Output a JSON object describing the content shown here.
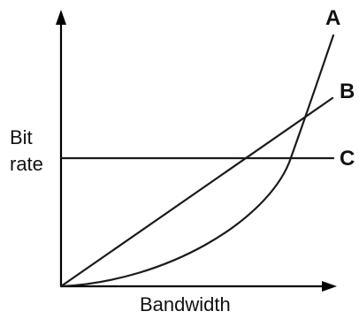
{
  "chart_data": {
    "type": "line",
    "xlabel": "Bandwidth",
    "ylabel_lines": [
      "Bit",
      "rate"
    ],
    "series": [
      {
        "name": "A",
        "shape": "exponential"
      },
      {
        "name": "B",
        "shape": "linear"
      },
      {
        "name": "C",
        "shape": "constant"
      }
    ],
    "grid": false,
    "ticks": false
  }
}
